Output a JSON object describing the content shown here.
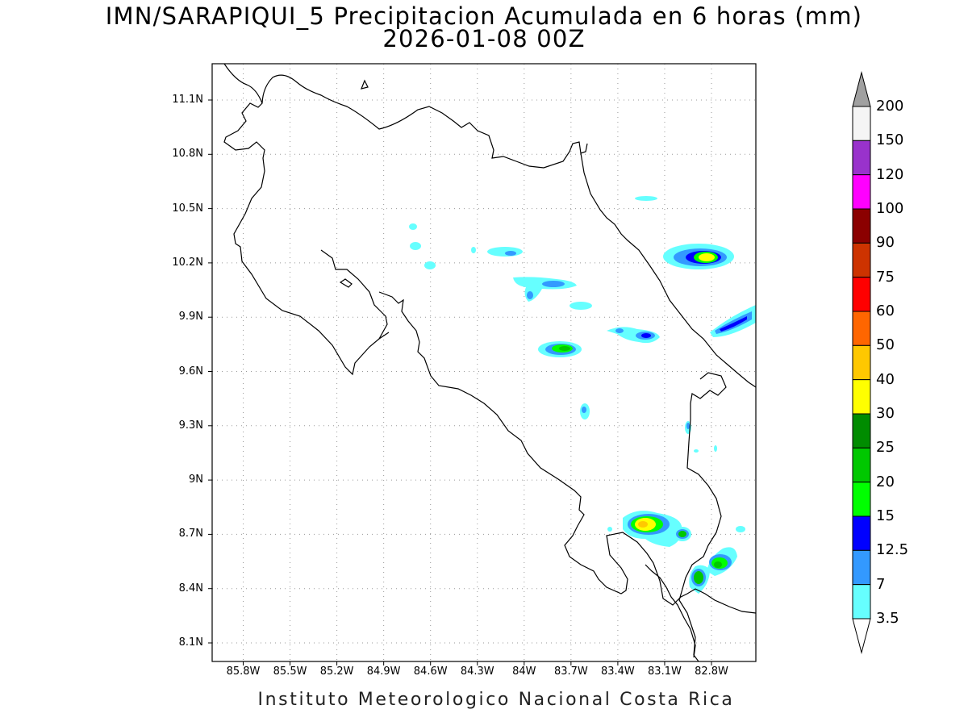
{
  "header": {
    "title": "IMN/SARAPIQUI_5 Precipitacion Acumulada en 6 horas (mm)",
    "subtitle": "2026-01-08 00Z"
  },
  "footer": {
    "credit": "Instituto Meteorologico Nacional Costa Rica"
  },
  "axes": {
    "lat_ticks": [
      "11.1N",
      "10.8N",
      "10.5N",
      "10.2N",
      "9.9N",
      "9.6N",
      "9.3N",
      "9N",
      "8.7N",
      "8.4N",
      "8.1N"
    ],
    "lon_ticks": [
      "85.8W",
      "85.5W",
      "85.2W",
      "84.9W",
      "84.6W",
      "84.3W",
      "84W",
      "83.7W",
      "83.4W",
      "83.1W",
      "82.8W"
    ]
  },
  "legend": {
    "levels": [
      {
        "label": "200",
        "color": "#f5f5f5"
      },
      {
        "label": "150",
        "color": "#9932cc"
      },
      {
        "label": "120",
        "color": "#ff00ff"
      },
      {
        "label": "100",
        "color": "#8b0000"
      },
      {
        "label": "90",
        "color": "#cd3300"
      },
      {
        "label": "75",
        "color": "#ff0000"
      },
      {
        "label": "60",
        "color": "#ff6600"
      },
      {
        "label": "50",
        "color": "#ffc800"
      },
      {
        "label": "40",
        "color": "#ffff00"
      },
      {
        "label": "30",
        "color": "#008c00"
      },
      {
        "label": "25",
        "color": "#00c800"
      },
      {
        "label": "20",
        "color": "#00ff00"
      },
      {
        "label": "15",
        "color": "#0000ff"
      },
      {
        "label": "12.5",
        "color": "#3399ff"
      },
      {
        "label": "7",
        "color": "#66ffff"
      },
      {
        "label": "3.5",
        "color": "#ffffff"
      }
    ],
    "top_arrow_color": "#a0a0a0"
  },
  "colors": {
    "light_cyan": "#66ffff",
    "sky_blue": "#3399ff",
    "blue": "#0000ff",
    "green": "#00ff00",
    "mid_green": "#00c800",
    "dark_green": "#008c00",
    "yellow": "#ffff00",
    "orange_yellow": "#ffc800"
  }
}
